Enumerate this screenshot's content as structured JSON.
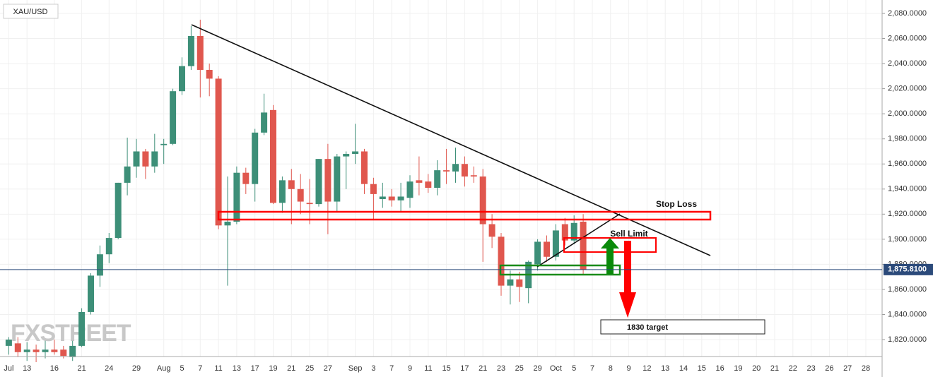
{
  "chart_data": {
    "type": "candlestick",
    "title": "XAU/USD",
    "watermark": "FXSTREET",
    "categories": [
      "Jul",
      null,
      "13",
      null,
      null,
      "16",
      null,
      null,
      "21",
      null,
      null,
      "24",
      null,
      null,
      "29",
      null,
      null,
      "Aug",
      null,
      "5",
      null,
      "7",
      null,
      "11",
      null,
      "13",
      null,
      "17",
      null,
      "19",
      null,
      "21",
      null,
      "25",
      null,
      "27",
      null,
      null,
      "Sep",
      null,
      "3",
      null,
      "7",
      null,
      "9",
      null,
      "11",
      null,
      "15",
      null,
      "17",
      null,
      "21",
      null,
      "23",
      null,
      "25",
      null,
      "29",
      null,
      "Oct",
      null,
      "5",
      null,
      "7",
      null,
      "8",
      null,
      "9",
      null,
      "12",
      null,
      "13",
      null,
      "14",
      null,
      "15",
      null,
      "16",
      null,
      "19",
      null,
      "20",
      null,
      "21",
      null,
      "22",
      null,
      "23",
      null,
      "26",
      null,
      "27",
      null,
      "28"
    ],
    "open": [
      1815,
      1817,
      1810,
      1812,
      1810,
      1812,
      1812,
      1806,
      1815,
      1842,
      1871,
      1888,
      1901,
      1945,
      1958,
      1970,
      1958,
      1975,
      1976,
      2018,
      2038,
      2062,
      2035,
      2028,
      1911,
      1914,
      1953,
      1944,
      1985,
      2003,
      1929,
      1947,
      1940,
      1929,
      1928,
      1964,
      1930,
      1966,
      1968,
      1970,
      1944,
      1932,
      1934,
      1931,
      1933,
      1947,
      1946,
      1941,
      1955,
      1954,
      1960,
      1951,
      1950,
      1912,
      1902,
      1863,
      1868,
      1861,
      1880,
      1898,
      1886,
      1912,
      1899,
      1914,
      null,
      null,
      null,
      null,
      null,
      null,
      null,
      null,
      null,
      null,
      null,
      null,
      null,
      null,
      null,
      null,
      null,
      null,
      null,
      null,
      null,
      null,
      null,
      null,
      null,
      null,
      null,
      null,
      null,
      null,
      null
    ],
    "high": [
      1822,
      1822,
      1818,
      1816,
      1819,
      1820,
      1815,
      1819,
      1845,
      1873,
      1895,
      1905,
      1945,
      1981,
      1980,
      1972,
      1984,
      1980,
      2020,
      2045,
      2070,
      2075,
      2040,
      2030,
      1950,
      1958,
      1957,
      1988,
      2016,
      2007,
      1950,
      1956,
      1952,
      1948,
      1964,
      1976,
      1968,
      1970,
      1992,
      1972,
      1949,
      1945,
      1940,
      1945,
      1951,
      1966,
      1952,
      1963,
      1972,
      1973,
      1966,
      1958,
      1956,
      1920,
      1905,
      1875,
      1874,
      1883,
      1900,
      1903,
      1912,
      1917,
      1919,
      1920,
      null,
      null,
      null,
      null,
      null,
      null,
      null,
      null,
      null,
      null,
      null,
      null,
      null,
      null,
      null,
      null,
      null,
      null,
      null,
      null,
      null,
      null,
      null,
      null,
      null,
      null,
      null,
      null,
      null,
      null,
      null
    ],
    "low": [
      1808,
      1806,
      1803,
      1802,
      1805,
      1808,
      1805,
      1803,
      1814,
      1840,
      1862,
      1881,
      1900,
      1935,
      1949,
      1948,
      1953,
      1960,
      1975,
      2015,
      2035,
      2013,
      2014,
      1908,
      1863,
      1912,
      1936,
      1930,
      1983,
      1928,
      1921,
      1912,
      1920,
      1912,
      1926,
      1904,
      1922,
      1940,
      1960,
      1936,
      1916,
      1925,
      1926,
      1922,
      1925,
      1935,
      1937,
      1935,
      1944,
      1945,
      1942,
      1945,
      1882,
      1893,
      1855,
      1848,
      1850,
      1849,
      1875,
      1882,
      1883,
      1895,
      1896,
      1872,
      null,
      null,
      null,
      null,
      null,
      null,
      null,
      null,
      null,
      null,
      null,
      null,
      null,
      null,
      null,
      null,
      null,
      null,
      null,
      null,
      null,
      null,
      null,
      null,
      null,
      null,
      null,
      null,
      null,
      null,
      null
    ],
    "close": [
      1820,
      1810,
      1812,
      1810,
      1812,
      1810,
      1807,
      1815,
      1842,
      1871,
      1888,
      1901,
      1945,
      1958,
      1970,
      1958,
      1970,
      1976,
      2018,
      2038,
      2062,
      2035,
      2028,
      1911,
      1914,
      1953,
      1944,
      1985,
      2001,
      1929,
      1947,
      1940,
      1930,
      1928,
      1964,
      1930,
      1966,
      1968,
      1970,
      1944,
      1936,
      1934,
      1931,
      1934,
      1946,
      1945,
      1941,
      1955,
      1954,
      1960,
      1950,
      1950,
      1912,
      1902,
      1863,
      1868,
      1862,
      1882,
      1898,
      1886,
      1907,
      1899,
      1913,
      1876,
      null,
      null,
      null,
      null,
      null,
      null,
      null,
      null,
      null,
      null,
      null,
      null,
      null,
      null,
      null,
      null,
      null,
      null,
      null,
      null,
      null,
      null,
      null,
      null,
      null,
      null,
      null,
      null,
      null,
      null,
      null
    ],
    "up_color": "#3d8f78",
    "down_color": "#e0574e",
    "ylim": [
      1806.5,
      2090.7
    ],
    "yticks": [
      {
        "value": 1820,
        "label": "1,820.0000"
      },
      {
        "value": 1840,
        "label": "1,840.0000"
      },
      {
        "value": 1860,
        "label": "1,860.0000"
      },
      {
        "value": 1880,
        "label": "1,880.0000"
      },
      {
        "value": 1900,
        "label": "1,900.0000"
      },
      {
        "value": 1920,
        "label": "1,920.0000"
      },
      {
        "value": 1940,
        "label": "1,940.0000"
      },
      {
        "value": 1960,
        "label": "1,960.0000"
      },
      {
        "value": 1980,
        "label": "1,980.0000"
      },
      {
        "value": 2000,
        "label": "2,000.0000"
      },
      {
        "value": 2020,
        "label": "2,020.0000"
      },
      {
        "value": 2040,
        "label": "2,040.0000"
      },
      {
        "value": 2060,
        "label": "2,060.0000"
      },
      {
        "value": 2080,
        "label": "2,080.0000"
      }
    ],
    "current_price": {
      "value": 1875.81,
      "label": "1,875.8100"
    },
    "grid": true,
    "annotations": [
      "Stop Loss",
      "Sell Limit",
      "1830 target"
    ]
  }
}
